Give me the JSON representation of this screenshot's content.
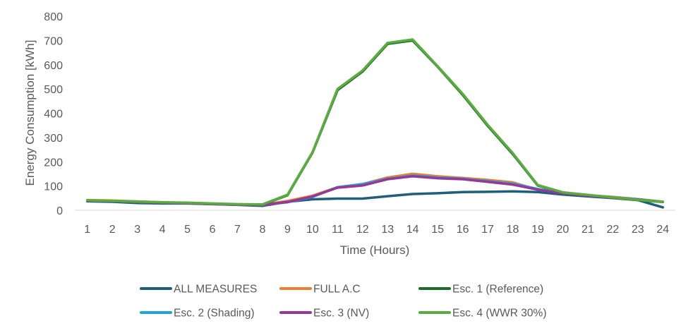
{
  "chart_data": {
    "type": "line",
    "xlabel": "Time (Hours)",
    "ylabel": "Energy Consumption [kWh]",
    "x": [
      1,
      2,
      3,
      4,
      5,
      6,
      7,
      8,
      9,
      10,
      11,
      12,
      13,
      14,
      15,
      16,
      17,
      18,
      19,
      20,
      21,
      22,
      23,
      24
    ],
    "x_tick_labels": [
      "1",
      "2",
      "3",
      "4",
      "5",
      "6",
      "7",
      "8",
      "9",
      "10",
      "11",
      "12",
      "13",
      "14",
      "15",
      "16",
      "17",
      "18",
      "19",
      "20",
      "21",
      "22",
      "23",
      "24"
    ],
    "ylim": [
      0,
      800
    ],
    "y_ticks": [
      0,
      100,
      200,
      300,
      400,
      500,
      600,
      700,
      800
    ],
    "y_tick_labels": [
      "0",
      "100",
      "200",
      "300",
      "400",
      "500",
      "600",
      "700",
      "800"
    ],
    "grid": false,
    "legend_position": "bottom",
    "series": [
      {
        "name": "ALL MEASURES",
        "color": "#1f5f7a",
        "values": [
          37,
          35,
          30,
          28,
          28,
          25,
          22,
          18,
          35,
          45,
          48,
          48,
          58,
          67,
          70,
          75,
          76,
          78,
          75,
          65,
          57,
          50,
          42,
          12
        ]
      },
      {
        "name": "FULL A.C",
        "color": "#ed7d31",
        "values": [
          42,
          40,
          36,
          33,
          30,
          27,
          24,
          23,
          38,
          60,
          95,
          108,
          135,
          150,
          140,
          133,
          125,
          115,
          85,
          72,
          62,
          55,
          46,
          35
        ]
      },
      {
        "name": "Esc. 1 (Reference)",
        "color": "#1e6b2c",
        "values": [
          40,
          38,
          35,
          32,
          30,
          27,
          24,
          23,
          62,
          238,
          495,
          572,
          686,
          700,
          592,
          476,
          348,
          232,
          102,
          73,
          62,
          52,
          42,
          34
        ]
      },
      {
        "name": "Esc. 2 (Shading)",
        "color": "#22a4d8",
        "values": [
          40,
          38,
          34,
          31,
          29,
          26,
          23,
          22,
          33,
          55,
          95,
          108,
          130,
          143,
          135,
          130,
          120,
          110,
          88,
          72,
          62,
          53,
          45,
          35
        ]
      },
      {
        "name": "Esc. 3 (NV)",
        "color": "#963996",
        "values": [
          40,
          38,
          34,
          31,
          29,
          26,
          23,
          22,
          34,
          57,
          93,
          102,
          128,
          140,
          132,
          128,
          117,
          106,
          85,
          70,
          60,
          52,
          44,
          34
        ]
      },
      {
        "name": "Esc. 4 (WWR 30%)",
        "color": "#5aac3e",
        "values": [
          41,
          39,
          36,
          33,
          31,
          28,
          25,
          24,
          64,
          240,
          500,
          576,
          690,
          704,
          594,
          480,
          352,
          236,
          104,
          74,
          63,
          53,
          43,
          35
        ]
      }
    ]
  }
}
